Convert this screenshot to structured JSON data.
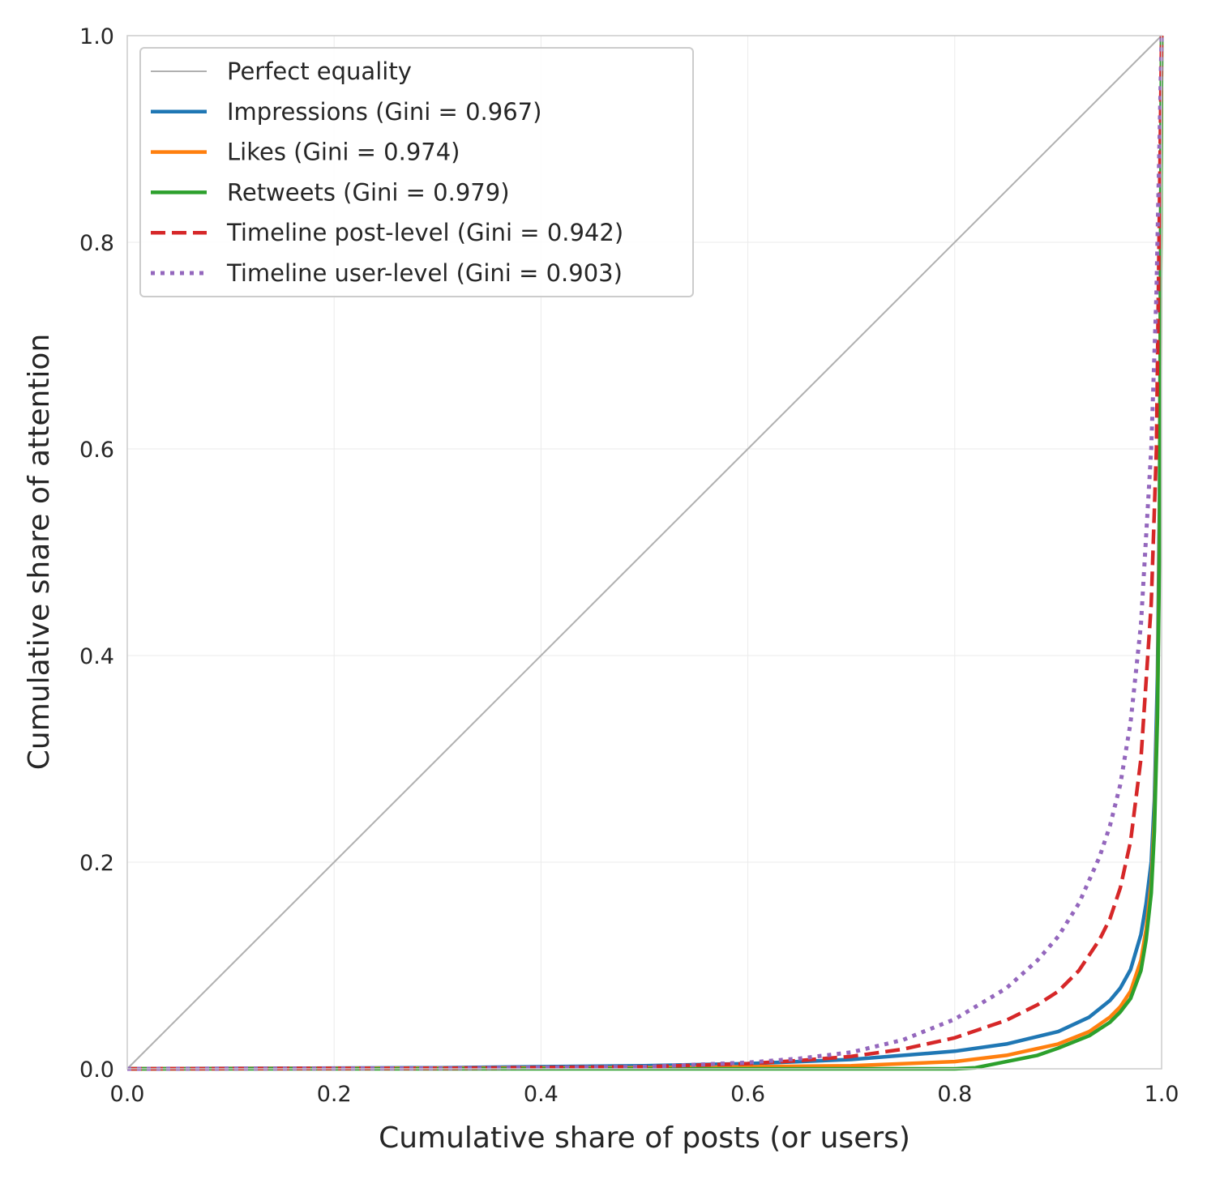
{
  "chart_data": {
    "type": "line",
    "title": "",
    "xlabel": "Cumulative share of posts (or users)",
    "ylabel": "Cumulative share of attention",
    "xlim": [
      0,
      1
    ],
    "ylim": [
      0,
      1
    ],
    "x_ticks": [
      "0.0",
      "0.2",
      "0.4",
      "0.6",
      "0.8",
      "1.0"
    ],
    "y_ticks": [
      "0.0",
      "0.2",
      "0.4",
      "0.6",
      "0.8",
      "1.0"
    ],
    "grid": true,
    "legend_position": "top-left",
    "series": [
      {
        "name": "Perfect equality",
        "color": "#b0b0b0",
        "style": "solid",
        "x": [
          0,
          1
        ],
        "y": [
          0,
          1
        ]
      },
      {
        "name": "Impressions (Gini = 0.967)",
        "color": "#1f77b4",
        "style": "solid",
        "x": [
          0,
          0.3,
          0.5,
          0.6,
          0.7,
          0.8,
          0.85,
          0.9,
          0.93,
          0.95,
          0.96,
          0.97,
          0.98,
          0.985,
          0.99,
          0.993,
          0.996,
          0.998,
          1.0
        ],
        "y": [
          0,
          0.001,
          0.003,
          0.005,
          0.009,
          0.017,
          0.024,
          0.036,
          0.05,
          0.066,
          0.078,
          0.096,
          0.13,
          0.16,
          0.2,
          0.26,
          0.38,
          0.55,
          1.0
        ]
      },
      {
        "name": "Likes (Gini = 0.974)",
        "color": "#ff7f0e",
        "style": "solid",
        "x": [
          0,
          0.5,
          0.6,
          0.7,
          0.8,
          0.85,
          0.9,
          0.93,
          0.95,
          0.96,
          0.97,
          0.98,
          0.985,
          0.99,
          0.993,
          0.996,
          0.998,
          1.0
        ],
        "y": [
          0,
          0.001,
          0.002,
          0.003,
          0.007,
          0.013,
          0.024,
          0.036,
          0.05,
          0.06,
          0.075,
          0.105,
          0.135,
          0.18,
          0.24,
          0.35,
          0.52,
          1.0
        ]
      },
      {
        "name": "Retweets (Gini = 0.979)",
        "color": "#2ca02c",
        "style": "solid",
        "x": [
          0,
          0.6,
          0.7,
          0.8,
          0.82,
          0.85,
          0.88,
          0.9,
          0.93,
          0.95,
          0.96,
          0.97,
          0.98,
          0.985,
          0.99,
          0.993,
          0.996,
          0.998,
          1.0
        ],
        "y": [
          0,
          0.0,
          0.0,
          0.0,
          0.001,
          0.007,
          0.013,
          0.02,
          0.032,
          0.045,
          0.055,
          0.068,
          0.095,
          0.125,
          0.17,
          0.23,
          0.34,
          0.5,
          1.0
        ]
      },
      {
        "name": "Timeline post-level (Gini = 0.942)",
        "color": "#d62728",
        "style": "dashed",
        "x": [
          0,
          0.3,
          0.5,
          0.6,
          0.65,
          0.7,
          0.75,
          0.8,
          0.85,
          0.88,
          0.9,
          0.92,
          0.94,
          0.95,
          0.96,
          0.97,
          0.98,
          0.99,
          0.995,
          1.0
        ],
        "y": [
          0,
          0.0005,
          0.002,
          0.005,
          0.008,
          0.012,
          0.019,
          0.03,
          0.047,
          0.062,
          0.075,
          0.095,
          0.125,
          0.145,
          0.175,
          0.22,
          0.3,
          0.45,
          0.6,
          1.0
        ]
      },
      {
        "name": "Timeline user-level (Gini = 0.903)",
        "color": "#9467bd",
        "style": "dotted",
        "x": [
          0,
          0.3,
          0.5,
          0.6,
          0.65,
          0.7,
          0.75,
          0.8,
          0.85,
          0.88,
          0.9,
          0.92,
          0.94,
          0.95,
          0.96,
          0.97,
          0.98,
          0.99,
          0.995,
          1.0
        ],
        "y": [
          0,
          0.0005,
          0.002,
          0.006,
          0.01,
          0.016,
          0.028,
          0.048,
          0.078,
          0.105,
          0.128,
          0.16,
          0.205,
          0.235,
          0.275,
          0.335,
          0.43,
          0.6,
          0.75,
          1.0
        ]
      }
    ]
  }
}
